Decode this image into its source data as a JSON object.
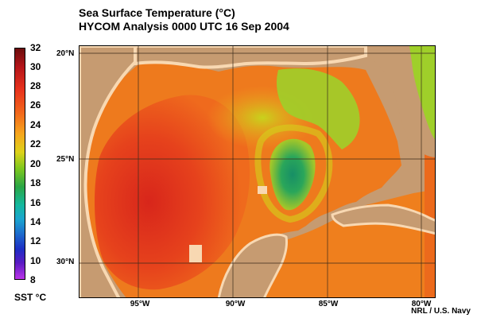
{
  "title": {
    "line1": "Sea Surface Temperature (°C)",
    "line2": "HYCOM Analysis 0000 UTC 16 Sep 2004"
  },
  "colorbar": {
    "ticks": [
      "32",
      "30",
      "28",
      "26",
      "24",
      "22",
      "20",
      "18",
      "16",
      "14",
      "12",
      "10",
      "8"
    ],
    "label": "SST °C",
    "min": 8,
    "max": 32
  },
  "map": {
    "latitude_labels": [
      "20°N",
      "25°N",
      "30°N"
    ],
    "longitude_labels": [
      "95°W",
      "90°W",
      "85°W",
      "80°W"
    ],
    "colors": {
      "land": "#c69b71",
      "coast_fringe": "#f8d8b2",
      "warm_core": "#e0321c",
      "shelf": "#ee8a1d",
      "eddy_core": "#1a9a63",
      "grid": "#3a2a1a"
    }
  },
  "credit": "NRL / U.S. Navy"
}
